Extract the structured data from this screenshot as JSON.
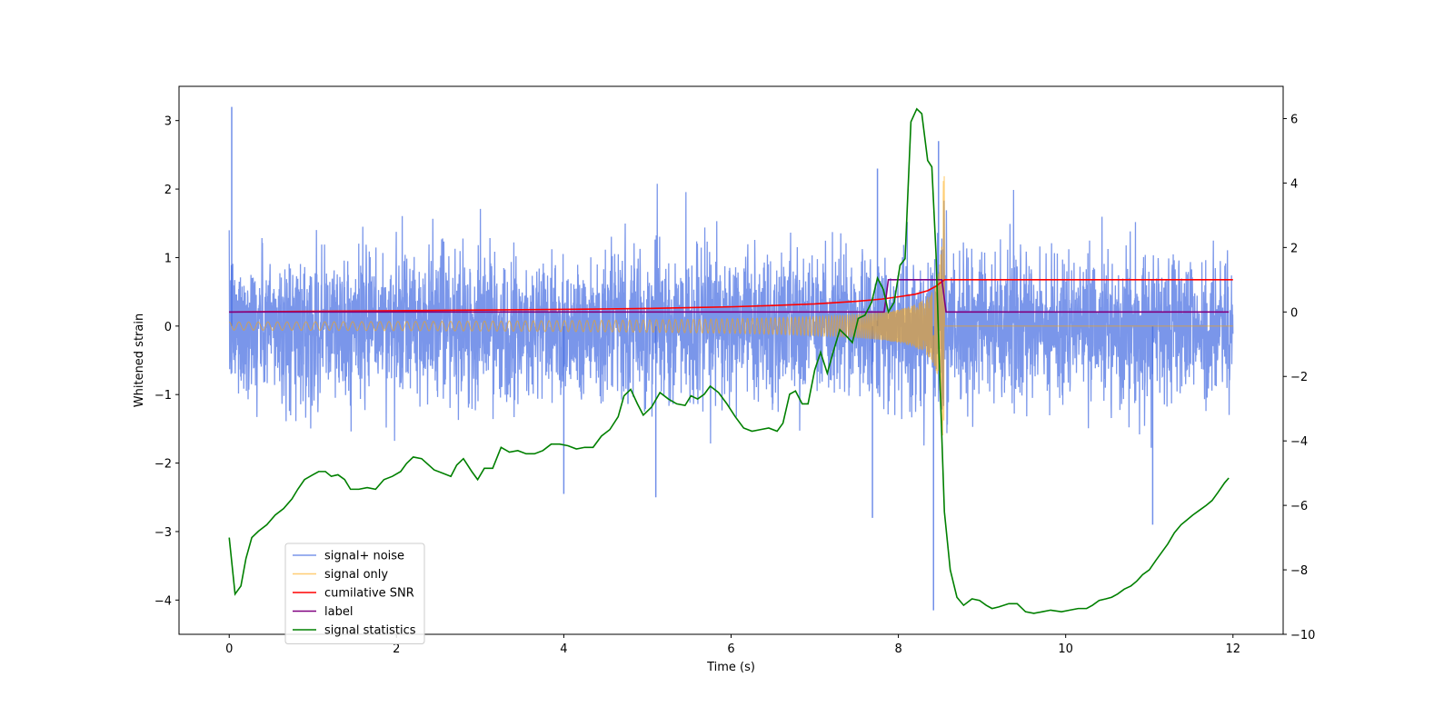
{
  "chart_data": {
    "type": "line",
    "xlabel": "Time (s)",
    "ylabel": "Whitened strain",
    "y2label": "",
    "xlim": [
      -0.6,
      12.6
    ],
    "ylim": [
      -4.5,
      3.5
    ],
    "y2lim": [
      -10,
      7
    ],
    "xticks": [
      0,
      2,
      4,
      6,
      8,
      10,
      12
    ],
    "yticks": [
      -4,
      -3,
      -2,
      -1,
      0,
      1,
      2,
      3
    ],
    "y2ticks": [
      -10,
      -8,
      -6,
      -4,
      -2,
      0,
      2,
      4,
      6
    ],
    "legend_position": "lower-left",
    "grid": false,
    "series": [
      {
        "name": "signal+ noise",
        "color": "#4169e1",
        "axis": "left",
        "description": "whitened noise plus chirp signal, sampled densely",
        "x_range": [
          0,
          12
        ],
        "noise_amplitude": 0.75,
        "peaks": [
          [
            0.03,
            3.2
          ],
          [
            8.42,
            -4.15
          ],
          [
            8.48,
            2.7
          ],
          [
            7.75,
            2.3
          ],
          [
            11.04,
            -2.9
          ],
          [
            4.0,
            -2.45
          ],
          [
            5.1,
            -2.5
          ],
          [
            7.69,
            -2.8
          ]
        ]
      },
      {
        "name": "signal only",
        "color": "#ffa500",
        "axis": "left",
        "description": "chirp signal growing in amplitude and frequency until merger near t = 8.55 s",
        "x_range": [
          0,
          12
        ],
        "merger_time": 8.55,
        "peak_amplitude": 2.3
      },
      {
        "name": "cumilative SNR",
        "color": "#ff0000",
        "axis": "right",
        "x": [
          0,
          1,
          2,
          3,
          4,
          5,
          6,
          6.5,
          7,
          7.5,
          7.8,
          8.0,
          8.2,
          8.35,
          8.45,
          8.55,
          9,
          10,
          11,
          12
        ],
        "y": [
          0.0,
          0.02,
          0.04,
          0.06,
          0.08,
          0.11,
          0.16,
          0.2,
          0.25,
          0.33,
          0.4,
          0.47,
          0.55,
          0.66,
          0.8,
          1.0,
          1.0,
          1.0,
          1.0,
          1.0
        ]
      },
      {
        "name": "label",
        "color": "#800080",
        "axis": "right",
        "x": [
          0,
          7.83,
          7.88,
          8.52,
          8.57,
          11.95
        ],
        "y": [
          0,
          0,
          1,
          1,
          0,
          0
        ]
      },
      {
        "name": "signal statistics",
        "color": "#008000",
        "axis": "right",
        "x": [
          0,
          0.07,
          0.14,
          0.2,
          0.27,
          0.35,
          0.45,
          0.55,
          0.65,
          0.75,
          0.82,
          0.9,
          1.0,
          1.07,
          1.15,
          1.22,
          1.3,
          1.38,
          1.45,
          1.55,
          1.65,
          1.75,
          1.85,
          1.95,
          2.05,
          2.12,
          2.2,
          2.3,
          2.45,
          2.55,
          2.65,
          2.72,
          2.8,
          2.9,
          2.97,
          3.05,
          3.15,
          3.25,
          3.35,
          3.45,
          3.55,
          3.65,
          3.75,
          3.85,
          3.95,
          4.05,
          4.15,
          4.25,
          4.35,
          4.45,
          4.55,
          4.65,
          4.72,
          4.8,
          4.88,
          4.95,
          5.05,
          5.15,
          5.25,
          5.35,
          5.45,
          5.52,
          5.6,
          5.68,
          5.75,
          5.85,
          5.95,
          6.05,
          6.15,
          6.25,
          6.35,
          6.45,
          6.55,
          6.62,
          6.7,
          6.77,
          6.85,
          6.92,
          7.0,
          7.07,
          7.15,
          7.22,
          7.3,
          7.38,
          7.45,
          7.52,
          7.6,
          7.68,
          7.75,
          7.82,
          7.88,
          7.95,
          8.02,
          8.08,
          8.15,
          8.22,
          8.28,
          8.35,
          8.4,
          8.45,
          8.5,
          8.55,
          8.62,
          8.7,
          8.78,
          8.88,
          8.97,
          9.05,
          9.12,
          9.2,
          9.32,
          9.42,
          9.52,
          9.62,
          9.72,
          9.82,
          9.95,
          10.05,
          10.15,
          10.25,
          10.32,
          10.4,
          10.48,
          10.55,
          10.62,
          10.7,
          10.78,
          10.85,
          10.92,
          11.0,
          11.08,
          11.15,
          11.22,
          11.3,
          11.38,
          11.45,
          11.52,
          11.6,
          11.68,
          11.75,
          11.82,
          11.9,
          11.95
        ],
        "y": [
          -7.0,
          -8.75,
          -8.5,
          -7.65,
          -7.0,
          -6.8,
          -6.6,
          -6.3,
          -6.1,
          -5.8,
          -5.5,
          -5.2,
          -5.05,
          -4.95,
          -4.95,
          -5.1,
          -5.05,
          -5.2,
          -5.5,
          -5.5,
          -5.45,
          -5.5,
          -5.2,
          -5.1,
          -4.95,
          -4.7,
          -4.5,
          -4.55,
          -4.9,
          -5.0,
          -5.1,
          -4.75,
          -4.55,
          -4.95,
          -5.2,
          -4.85,
          -4.85,
          -4.2,
          -4.35,
          -4.3,
          -4.4,
          -4.4,
          -4.3,
          -4.1,
          -4.1,
          -4.15,
          -4.25,
          -4.2,
          -4.2,
          -3.85,
          -3.65,
          -3.25,
          -2.6,
          -2.4,
          -2.85,
          -3.2,
          -2.95,
          -2.5,
          -2.7,
          -2.85,
          -2.9,
          -2.6,
          -2.7,
          -2.55,
          -2.3,
          -2.5,
          -2.85,
          -3.25,
          -3.6,
          -3.7,
          -3.65,
          -3.6,
          -3.7,
          -3.45,
          -2.55,
          -2.45,
          -2.85,
          -2.85,
          -1.8,
          -1.25,
          -1.9,
          -1.25,
          -0.55,
          -0.75,
          -0.95,
          -0.2,
          -0.1,
          0.3,
          1.05,
          0.7,
          0.0,
          0.3,
          1.45,
          1.65,
          5.9,
          6.3,
          6.15,
          4.7,
          4.5,
          1.8,
          -2.4,
          -6.2,
          -8.0,
          -8.85,
          -9.1,
          -8.9,
          -8.95,
          -9.1,
          -9.2,
          -9.15,
          -9.05,
          -9.05,
          -9.3,
          -9.35,
          -9.3,
          -9.25,
          -9.3,
          -9.25,
          -9.2,
          -9.2,
          -9.1,
          -8.95,
          -8.9,
          -8.85,
          -8.75,
          -8.6,
          -8.5,
          -8.35,
          -8.15,
          -8.0,
          -7.7,
          -7.45,
          -7.2,
          -6.85,
          -6.6,
          -6.45,
          -6.3,
          -6.15,
          -6.0,
          -5.85,
          -5.6,
          -5.3,
          -5.15
        ]
      }
    ]
  }
}
